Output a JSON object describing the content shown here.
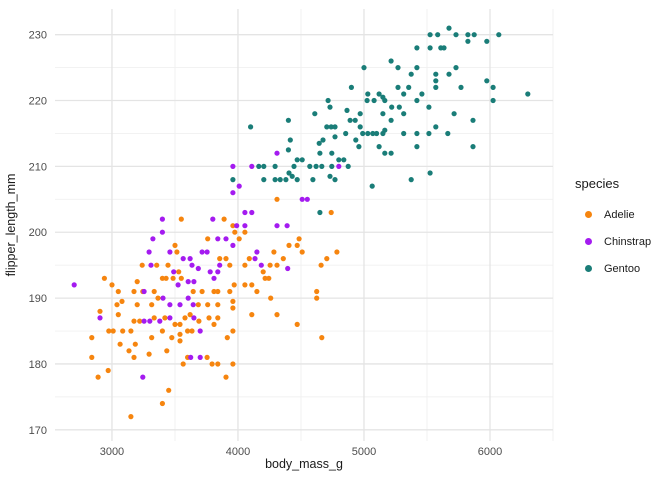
{
  "chart_data": {
    "type": "scatter",
    "title": "",
    "xlabel": "body_mass_g",
    "ylabel": "flipper_length_mm",
    "legend_title": "species",
    "legend_position": "right",
    "grid": true,
    "x_range": [
      2548,
      6500
    ],
    "y_range": [
      168.3,
      233.9
    ],
    "x_ticks": [
      3000,
      4000,
      5000,
      6000
    ],
    "x_minor_ticks": [
      3500,
      4500,
      5500,
      6500
    ],
    "y_ticks": [
      170,
      180,
      190,
      200,
      210,
      220,
      230
    ],
    "y_minor_ticks": [
      175,
      185,
      195,
      205,
      215,
      225
    ],
    "series": [
      {
        "name": "Adelie",
        "color": "#F6850F",
        "points": [
          [
            3550,
            202
          ],
          [
            4310,
            205
          ],
          [
            4740,
            203
          ],
          [
            3890,
            202
          ],
          [
            3760,
            199
          ],
          [
            3960,
            201
          ],
          [
            3975,
            200
          ],
          [
            4055,
            200
          ],
          [
            4010,
            199
          ],
          [
            4485,
            199
          ],
          [
            3500,
            198
          ],
          [
            3515,
            197
          ],
          [
            4405,
            198
          ],
          [
            4470,
            198
          ],
          [
            4510,
            197
          ],
          [
            4285,
            197
          ],
          [
            4785,
            197
          ],
          [
            4090,
            196
          ],
          [
            3905,
            196
          ],
          [
            4360,
            196
          ],
          [
            4705,
            196
          ],
          [
            3855,
            196
          ],
          [
            3240,
            195
          ],
          [
            3355,
            195
          ],
          [
            3445,
            195
          ],
          [
            3935,
            195
          ],
          [
            4055,
            195
          ],
          [
            4255,
            195
          ],
          [
            4310,
            195
          ],
          [
            4660,
            195
          ],
          [
            3530,
            194
          ],
          [
            4200,
            194
          ],
          [
            3400,
            193
          ],
          [
            3430,
            193
          ],
          [
            3485,
            193
          ],
          [
            3550,
            193
          ],
          [
            2940,
            193
          ],
          [
            4215,
            193
          ],
          [
            4245,
            193
          ],
          [
            3000,
            192
          ],
          [
            3200,
            192.5
          ],
          [
            3970,
            192
          ],
          [
            4055,
            192
          ],
          [
            4110,
            192
          ],
          [
            3050,
            191
          ],
          [
            3175,
            191
          ],
          [
            3245,
            191
          ],
          [
            3335,
            191
          ],
          [
            3645,
            191
          ],
          [
            3715,
            191
          ],
          [
            3810,
            191
          ],
          [
            3840,
            191
          ],
          [
            3935,
            191
          ],
          [
            4150,
            191
          ],
          [
            4625,
            191
          ],
          [
            3365,
            190
          ],
          [
            4260,
            190
          ],
          [
            4625,
            190
          ],
          [
            3040,
            189
          ],
          [
            3080,
            189.5
          ],
          [
            3200,
            189
          ],
          [
            3315,
            189
          ],
          [
            3685,
            189
          ],
          [
            3760,
            189
          ],
          [
            3840,
            189
          ],
          [
            3960,
            189.5
          ],
          [
            3960,
            188.5
          ],
          [
            2905,
            188
          ],
          [
            3050,
            187.5
          ],
          [
            4110,
            187.5
          ],
          [
            4310,
            187.5
          ],
          [
            3335,
            187
          ],
          [
            3420,
            187
          ],
          [
            3580,
            187
          ],
          [
            3770,
            187
          ],
          [
            3840,
            187
          ],
          [
            3620,
            187.5
          ],
          [
            3175,
            186.5
          ],
          [
            3220,
            186.5
          ],
          [
            3690,
            186.5
          ],
          [
            3500,
            186
          ],
          [
            3540,
            186
          ],
          [
            3810,
            186
          ],
          [
            4470,
            186
          ],
          [
            3010,
            185
          ],
          [
            2975,
            185
          ],
          [
            3085,
            185
          ],
          [
            3150,
            185
          ],
          [
            3400,
            185
          ],
          [
            3600,
            185
          ],
          [
            3635,
            185
          ],
          [
            3960,
            185
          ],
          [
            3540,
            184.5
          ],
          [
            2840,
            184
          ],
          [
            3315,
            184
          ],
          [
            3475,
            184
          ],
          [
            3915,
            184
          ],
          [
            4665,
            184
          ],
          [
            3540,
            183.5
          ],
          [
            3065,
            183
          ],
          [
            3185,
            183
          ],
          [
            3435,
            182
          ],
          [
            3135,
            182
          ],
          [
            2840,
            181
          ],
          [
            3175,
            181
          ],
          [
            3295,
            181.5
          ],
          [
            3600,
            181
          ],
          [
            3755,
            181
          ],
          [
            3565,
            180
          ],
          [
            3795,
            180
          ],
          [
            3840,
            180
          ],
          [
            3960,
            180
          ],
          [
            2890,
            178
          ],
          [
            3905,
            178
          ],
          [
            2970,
            179
          ],
          [
            3450,
            176
          ],
          [
            3400,
            174
          ],
          [
            3150,
            172
          ]
        ]
      },
      {
        "name": "Chinstrap",
        "color": "#A41BF0",
        "points": [
          [
            4310,
            212
          ],
          [
            3960,
            210
          ],
          [
            4110,
            210
          ],
          [
            4800,
            210
          ],
          [
            4010,
            207
          ],
          [
            3960,
            206
          ],
          [
            4510,
            205
          ],
          [
            4550,
            205
          ],
          [
            4055,
            203
          ],
          [
            4110,
            203
          ],
          [
            3400,
            202
          ],
          [
            3800,
            202
          ],
          [
            3990,
            201
          ],
          [
            4055,
            201
          ],
          [
            4310,
            201
          ],
          [
            4390,
            201
          ],
          [
            3400,
            200
          ],
          [
            3325,
            199
          ],
          [
            3840,
            199
          ],
          [
            3905,
            199
          ],
          [
            3960,
            198
          ],
          [
            3295,
            197
          ],
          [
            3460,
            197
          ],
          [
            3715,
            197
          ],
          [
            3755,
            197
          ],
          [
            4150,
            197
          ],
          [
            3565,
            196
          ],
          [
            3620,
            196
          ],
          [
            4135,
            196
          ],
          [
            3310,
            195
          ],
          [
            3635,
            195
          ],
          [
            4185,
            195
          ],
          [
            3855,
            195
          ],
          [
            3685,
            194.5
          ],
          [
            4395,
            194.5
          ],
          [
            3490,
            194
          ],
          [
            3780,
            194
          ],
          [
            3840,
            194
          ],
          [
            3810,
            193
          ],
          [
            3605,
            192.5
          ],
          [
            3650,
            192.5
          ],
          [
            2700,
            192
          ],
          [
            3525,
            192
          ],
          [
            3255,
            191
          ],
          [
            3405,
            190
          ],
          [
            3605,
            190
          ],
          [
            3460,
            189
          ],
          [
            3540,
            189
          ],
          [
            3645,
            189
          ],
          [
            2905,
            187
          ],
          [
            3460,
            187
          ],
          [
            3650,
            187
          ],
          [
            3255,
            186.5
          ],
          [
            3300,
            186.5
          ],
          [
            3380,
            186.5
          ],
          [
            3700,
            185
          ],
          [
            3625,
            181
          ],
          [
            3700,
            181
          ],
          [
            3245,
            178
          ]
        ]
      },
      {
        "name": "Gentoo",
        "color": "#1A7D78",
        "points": [
          [
            5675,
            231
          ],
          [
            5525,
            230
          ],
          [
            5585,
            230
          ],
          [
            5730,
            230
          ],
          [
            5825,
            230
          ],
          [
            5875,
            230
          ],
          [
            6070,
            230
          ],
          [
            5825,
            229
          ],
          [
            5975,
            229
          ],
          [
            5420,
            228
          ],
          [
            5525,
            228
          ],
          [
            5610,
            228
          ],
          [
            5635,
            228
          ],
          [
            5215,
            226
          ],
          [
            5270,
            225
          ],
          [
            5420,
            225
          ],
          [
            5730,
            225
          ],
          [
            5000,
            225
          ],
          [
            5375,
            224
          ],
          [
            5570,
            224
          ],
          [
            5675,
            224
          ],
          [
            5570,
            223
          ],
          [
            5975,
            223
          ],
          [
            4900,
            222
          ],
          [
            5270,
            222
          ],
          [
            5355,
            222
          ],
          [
            5570,
            222
          ],
          [
            5770,
            222
          ],
          [
            6025,
            222
          ],
          [
            5030,
            221
          ],
          [
            5120,
            221
          ],
          [
            5315,
            221
          ],
          [
            5460,
            221
          ],
          [
            6300,
            221
          ],
          [
            4715,
            220
          ],
          [
            5025,
            220
          ],
          [
            5080,
            220
          ],
          [
            5150,
            220.5
          ],
          [
            5165,
            220
          ],
          [
            5420,
            220
          ],
          [
            6025,
            220
          ],
          [
            4730,
            219
          ],
          [
            5220,
            219
          ],
          [
            5280,
            219
          ],
          [
            5515,
            219
          ],
          [
            4865,
            218.5
          ],
          [
            4610,
            218
          ],
          [
            4970,
            218
          ],
          [
            5150,
            218
          ],
          [
            5315,
            218
          ],
          [
            5715,
            218
          ],
          [
            4400,
            217
          ],
          [
            4890,
            217
          ],
          [
            4930,
            217
          ],
          [
            5215,
            217
          ],
          [
            5865,
            217
          ],
          [
            4705,
            216
          ],
          [
            4740,
            216
          ],
          [
            4770,
            216
          ],
          [
            4100,
            216
          ],
          [
            4970,
            216
          ],
          [
            5570,
            216
          ],
          [
            4855,
            215
          ],
          [
            4990,
            215
          ],
          [
            5030,
            215
          ],
          [
            5070,
            215
          ],
          [
            5100,
            215
          ],
          [
            5150,
            215
          ],
          [
            5165,
            215.5
          ],
          [
            5315,
            215
          ],
          [
            5420,
            215
          ],
          [
            5515,
            215
          ],
          [
            5665,
            215
          ],
          [
            4770,
            214.5
          ],
          [
            4675,
            214
          ],
          [
            4935,
            214
          ],
          [
            4415,
            214
          ],
          [
            4645,
            213.5
          ],
          [
            4960,
            213
          ],
          [
            5120,
            213
          ],
          [
            5420,
            213
          ],
          [
            5865,
            213
          ],
          [
            4400,
            212.5
          ],
          [
            4650,
            212
          ],
          [
            4745,
            212
          ],
          [
            5215,
            212
          ],
          [
            5165,
            212
          ],
          [
            4510,
            211
          ],
          [
            4470,
            211
          ],
          [
            4800,
            211
          ],
          [
            4840,
            211
          ],
          [
            4165,
            210
          ],
          [
            4205,
            210
          ],
          [
            4295,
            210
          ],
          [
            4405,
            209
          ],
          [
            4445,
            210
          ],
          [
            4570,
            210
          ],
          [
            4620,
            210
          ],
          [
            4665,
            210
          ],
          [
            4745,
            210
          ],
          [
            4875,
            210
          ],
          [
            5525,
            209
          ],
          [
            3960,
            208
          ],
          [
            4205,
            208
          ],
          [
            4295,
            208
          ],
          [
            4335,
            208
          ],
          [
            4380,
            208
          ],
          [
            4430,
            208.5
          ],
          [
            4470,
            208
          ],
          [
            4595,
            208
          ],
          [
            4730,
            208.5
          ],
          [
            4770,
            208
          ],
          [
            5375,
            208
          ],
          [
            5065,
            207
          ],
          [
            4650,
            203
          ]
        ]
      }
    ],
    "style": {
      "major_grid_color": "#E4E4E4",
      "minor_grid_color": "#F0F0F0",
      "background": "#FFFFFF",
      "point_radius": 2.6
    }
  }
}
